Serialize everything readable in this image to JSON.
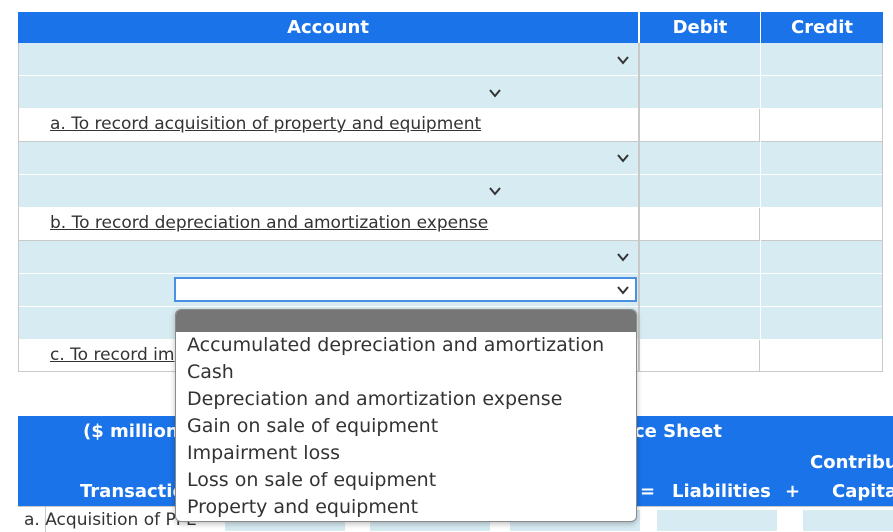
{
  "journal": {
    "headers": {
      "account": "Account",
      "debit": "Debit",
      "credit": "Credit"
    },
    "labels": {
      "a": "a. To record acquisition of property and equipment",
      "b": "b. To record depreciation and amortization expense",
      "c": "c. To record im"
    },
    "active_select_value": ""
  },
  "dropdown": {
    "options": [
      "Accumulated depreciation and amortization",
      "Cash",
      "Depreciation and amortization expense",
      "Gain on sale of equipment",
      "Impairment loss",
      "Loss on sale of equipment",
      "Property and equipment"
    ]
  },
  "balance_sheet": {
    "units": "($ millions",
    "title": "ce Sheet",
    "transaction_header": "Transactio",
    "eq_sign": "=",
    "liabilities": "Liabilities",
    "plus": "+",
    "contributed_top": "Contribu",
    "contributed_bottom": "Capita",
    "row_a": "a. Acquisition of PPE"
  },
  "colors": {
    "header_blue": "#1a73e8",
    "row_blue": "#d6ebf2",
    "focus_blue": "#4a90e2"
  }
}
